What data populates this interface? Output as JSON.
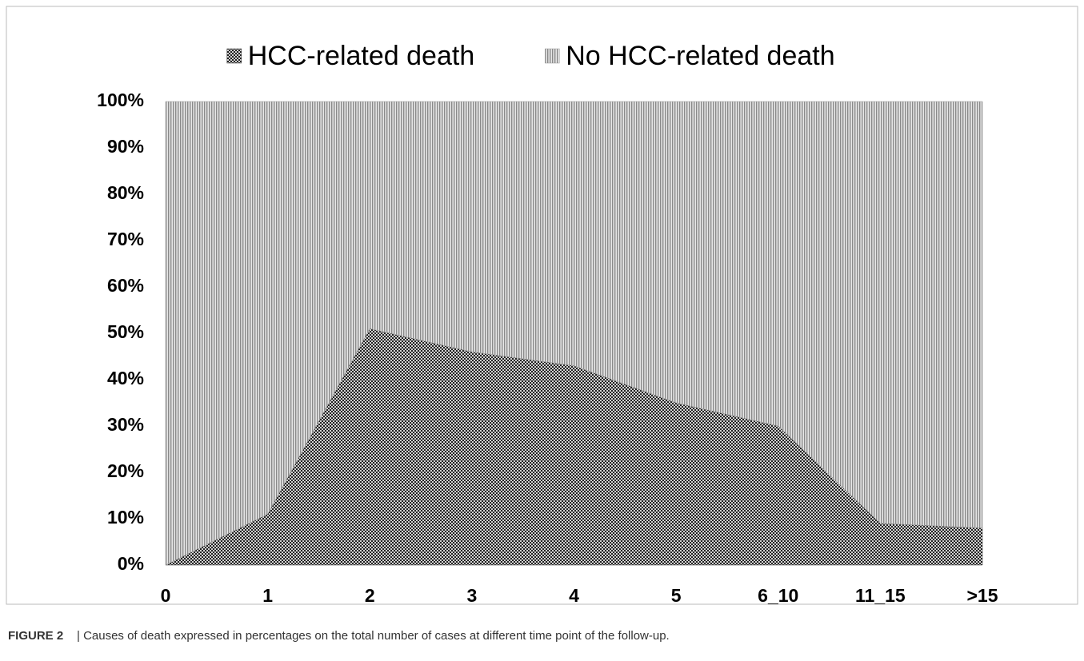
{
  "chart_data": {
    "type": "stacked_area",
    "categories": [
      "0",
      "1",
      "2",
      "3",
      "4",
      "5",
      "6_10",
      "11_15",
      ">15"
    ],
    "series": [
      {
        "name": "HCC-related death",
        "color": "#3a3a3a",
        "pattern": "checker",
        "values": [
          0,
          11,
          51,
          46,
          43,
          35,
          30,
          9,
          8
        ]
      },
      {
        "name": "No HCC-related death",
        "color": "#9a9a9a",
        "pattern": "stripes",
        "values": [
          100,
          89,
          49,
          54,
          57,
          65,
          70,
          91,
          92
        ]
      }
    ],
    "ylim": [
      0,
      100
    ],
    "yticks": [
      {
        "value": 0,
        "label": "0%"
      },
      {
        "value": 10,
        "label": "10%"
      },
      {
        "value": 20,
        "label": "20%"
      },
      {
        "value": 30,
        "label": "30%"
      },
      {
        "value": 40,
        "label": "40%"
      },
      {
        "value": 50,
        "label": "50%"
      },
      {
        "value": 60,
        "label": "60%"
      },
      {
        "value": 70,
        "label": "70%"
      },
      {
        "value": 80,
        "label": "80%"
      },
      {
        "value": 90,
        "label": "90%"
      },
      {
        "value": 100,
        "label": "100%"
      }
    ],
    "legend": "top"
  },
  "caption_label": "FIGURE 2",
  "caption": "| Causes of death expressed in percentages on the total number of cases at different time point of the follow-up."
}
